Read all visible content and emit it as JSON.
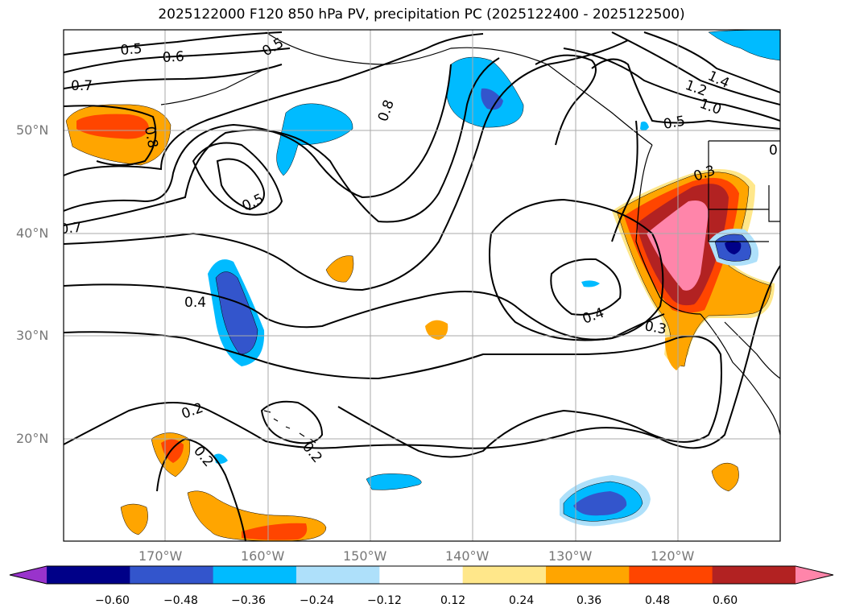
{
  "title": "2025122000 F120 850 hPa PV, precipitation PC (2025122400 - 2025122500)",
  "lat_labels": [
    "50°N",
    "40°N",
    "30°N",
    "20°N"
  ],
  "lon_labels": [
    "170°W",
    "160°W",
    "150°W",
    "140°W",
    "130°W",
    "120°W"
  ],
  "contour_labels": [
    "0.5",
    "0.6",
    "0.7",
    "0.5",
    "0.8",
    "0.8",
    "0.5",
    "0.7",
    "0.4",
    "0.2",
    "0.2",
    "0.2",
    "0.4",
    "0.3",
    "0.3",
    "0.5",
    "1.0",
    "1.2",
    "1.4",
    "0"
  ],
  "colorbar": {
    "tick_labels": [
      "−0.60",
      "−0.48",
      "−0.36",
      "−0.24",
      "−0.12",
      "0.12",
      "0.24",
      "0.36",
      "0.48",
      "0.60"
    ],
    "colors": [
      "#9933cc",
      "#000088",
      "#3355cc",
      "#00bbff",
      "#aee0fa",
      "#ffffff",
      "#ffe78a",
      "#ffa500",
      "#ff4500",
      "#b22222",
      "#ff85aa"
    ]
  }
}
